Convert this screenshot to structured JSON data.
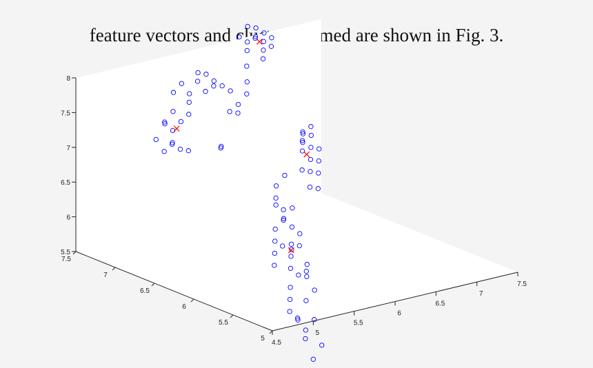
{
  "caption": "feature vectors and clusters formed are shown in Fig. 3.",
  "chart_data": {
    "type": "scatter",
    "projection": "3d",
    "axes": {
      "x": {
        "range": [
          4.5,
          7.5
        ],
        "ticks": [
          "4.5",
          "5",
          "5.5",
          "6",
          "6.5",
          "7",
          "7.5"
        ]
      },
      "y": {
        "range": [
          5,
          7.5
        ],
        "ticks": [
          "5",
          "5.5",
          "6",
          "6.5",
          "7",
          "7.5"
        ]
      },
      "z": {
        "range": [
          5.5,
          8
        ],
        "ticks": [
          "5.5",
          "6",
          "6.5",
          "7",
          "7.5",
          "8"
        ]
      }
    },
    "grid": false,
    "colors": {
      "points": "#0000ff",
      "centroids": "#ff0000",
      "axis": "#222222",
      "pane": "#ffffff"
    },
    "series": [
      {
        "marker": "circle",
        "color": "#0000ff",
        "points": [
          [
            5.2,
            7.0,
            7.1
          ],
          [
            5.1,
            7.0,
            7.0
          ],
          [
            5.3,
            7.1,
            7.2
          ],
          [
            5.2,
            6.9,
            7.05
          ],
          [
            5.4,
            7.1,
            7.3
          ],
          [
            5.1,
            6.9,
            7.15
          ],
          [
            5.3,
            7.2,
            7.25
          ],
          [
            5.2,
            7.1,
            7.35
          ],
          [
            5.0,
            7.0,
            7.2
          ],
          [
            5.3,
            6.9,
            7.0
          ],
          [
            5.4,
            7.2,
            7.4
          ],
          [
            5.5,
            7.3,
            7.6
          ],
          [
            5.6,
            7.3,
            7.7
          ],
          [
            5.7,
            7.2,
            7.75
          ],
          [
            5.8,
            7.3,
            7.8
          ],
          [
            5.9,
            7.2,
            7.7
          ],
          [
            5.6,
            7.2,
            7.6
          ],
          [
            5.5,
            7.1,
            7.55
          ],
          [
            5.7,
            7.1,
            7.65
          ],
          [
            5.8,
            7.1,
            7.7
          ],
          [
            5.9,
            7.3,
            7.75
          ],
          [
            6.0,
            7.2,
            7.6
          ],
          [
            6.1,
            7.2,
            7.5
          ],
          [
            5.4,
            7.0,
            7.45
          ],
          [
            5.9,
            7.0,
            7.35
          ],
          [
            6.0,
            7.0,
            7.3
          ],
          [
            6.1,
            7.1,
            7.35
          ],
          [
            6.3,
            7.2,
            7.4
          ],
          [
            6.4,
            7.3,
            7.5
          ],
          [
            5.6,
            6.8,
            7.0
          ],
          [
            5.7,
            6.9,
            6.95
          ],
          [
            6.5,
            7.4,
            8.0
          ],
          [
            6.6,
            7.4,
            8.05
          ],
          [
            6.7,
            7.5,
            8.1
          ],
          [
            6.6,
            7.5,
            8.15
          ],
          [
            6.5,
            7.3,
            8.1
          ],
          [
            6.8,
            7.5,
            8.0
          ],
          [
            6.7,
            7.4,
            7.95
          ],
          [
            6.6,
            7.3,
            7.9
          ],
          [
            6.4,
            7.3,
            7.95
          ],
          [
            6.5,
            7.2,
            7.85
          ],
          [
            6.3,
            7.2,
            7.8
          ],
          [
            6.4,
            7.4,
            8.1
          ],
          [
            6.7,
            7.3,
            8.05
          ],
          [
            6.6,
            7.2,
            8.0
          ],
          [
            5.1,
            5.6,
            6.0
          ],
          [
            5.2,
            5.7,
            6.1
          ],
          [
            5.3,
            5.8,
            6.2
          ],
          [
            5.4,
            5.9,
            6.3
          ],
          [
            5.2,
            5.6,
            6.25
          ],
          [
            5.5,
            5.9,
            6.4
          ],
          [
            5.6,
            6.0,
            6.35
          ],
          [
            5.6,
            6.1,
            6.5
          ],
          [
            5.4,
            5.7,
            6.0
          ],
          [
            5.3,
            5.6,
            5.9
          ],
          [
            5.5,
            5.8,
            6.1
          ],
          [
            5.7,
            6.0,
            6.2
          ],
          [
            5.6,
            5.9,
            5.95
          ],
          [
            5.4,
            5.5,
            5.8
          ],
          [
            5.3,
            5.5,
            5.85
          ],
          [
            5.5,
            5.6,
            5.9
          ],
          [
            5.2,
            5.5,
            5.7
          ],
          [
            5.1,
            5.4,
            5.6
          ],
          [
            5.0,
            5.3,
            5.5
          ],
          [
            5.2,
            5.3,
            5.6
          ],
          [
            5.4,
            5.4,
            5.65
          ],
          [
            5.6,
            5.8,
            6.05
          ],
          [
            5.7,
            5.9,
            6.15
          ],
          [
            5.8,
            6.1,
            6.4
          ],
          [
            5.3,
            5.4,
            5.95
          ],
          [
            5.0,
            5.2,
            5.45
          ],
          [
            5.1,
            5.3,
            5.35
          ],
          [
            5.0,
            5.1,
            5.2
          ],
          [
            5.1,
            5.2,
            5.25
          ],
          [
            5.3,
            5.3,
            5.3
          ],
          [
            5.2,
            5.1,
            5.05
          ],
          [
            5.0,
            5.0,
            4.95
          ],
          [
            5.6,
            6.1,
            6.6
          ],
          [
            5.7,
            6.2,
            6.7
          ],
          [
            5.5,
            5.9,
            6.55
          ],
          [
            5.9,
            6.3,
            6.75
          ],
          [
            6.5,
            6.7,
            6.75
          ],
          [
            6.6,
            6.8,
            6.8
          ],
          [
            6.7,
            6.8,
            6.7
          ],
          [
            6.6,
            6.7,
            6.6
          ],
          [
            6.5,
            6.6,
            6.5
          ],
          [
            6.7,
            6.9,
            6.85
          ],
          [
            6.8,
            6.9,
            6.8
          ],
          [
            6.8,
            6.8,
            6.65
          ],
          [
            6.7,
            6.7,
            6.55
          ],
          [
            6.6,
            6.6,
            6.45
          ],
          [
            6.4,
            6.6,
            6.55
          ],
          [
            6.5,
            6.7,
            6.9
          ],
          [
            6.6,
            6.8,
            6.95
          ],
          [
            6.7,
            6.8,
            7.0
          ],
          [
            6.4,
            6.5,
            6.35
          ],
          [
            6.5,
            6.5,
            6.3
          ]
        ]
      },
      {
        "marker": "x",
        "color": "#ff0000",
        "points": [
          [
            5.3,
            7.05,
            7.25
          ],
          [
            6.6,
            7.35,
            8.0
          ],
          [
            5.45,
            5.75,
            6.05
          ],
          [
            6.6,
            6.75,
            6.65
          ]
        ]
      }
    ]
  }
}
